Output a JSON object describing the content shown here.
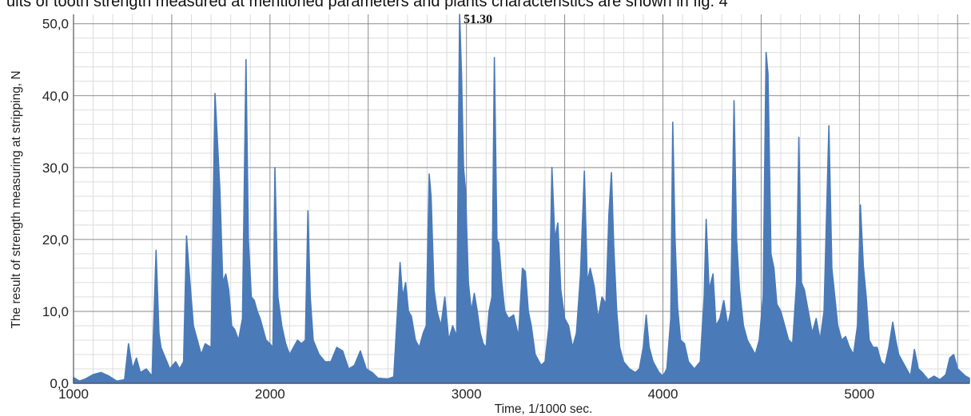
{
  "caption": "ults of tooth strength measured at mentioned parameters and plants characteristics are shown in fig. 4",
  "chart_data": {
    "type": "line",
    "xlabel": "Time,  1/1000 sec.",
    "ylabel": "The result of strength measuring at stripping, N",
    "xlim": [
      1000,
      5560
    ],
    "ylim": [
      0,
      51.3
    ],
    "x_ticks": [
      1000,
      2000,
      3000,
      4000,
      5000
    ],
    "x_tick_labels": [
      "1000",
      "2000",
      "3000",
      "4000",
      "5000"
    ],
    "y_ticks": [
      0,
      10,
      20,
      30,
      40,
      50
    ],
    "y_tick_labels": [
      "0,0",
      "10,0",
      "20,0",
      "30,0",
      "40,0",
      "50,0"
    ],
    "grid": true,
    "line_color": "#4a7ab8",
    "peak_annotation": {
      "x": 2965,
      "y": 51.3,
      "label": "51.30"
    },
    "series": [
      {
        "points": [
          [
            1000,
            0.8
          ],
          [
            1030,
            0.3
          ],
          [
            1060,
            0.6
          ],
          [
            1100,
            1.2
          ],
          [
            1140,
            1.5
          ],
          [
            1180,
            1.0
          ],
          [
            1220,
            0.3
          ],
          [
            1260,
            0.5
          ],
          [
            1280,
            5.5
          ],
          [
            1300,
            2.0
          ],
          [
            1320,
            3.5
          ],
          [
            1340,
            1.5
          ],
          [
            1370,
            2.0
          ],
          [
            1400,
            1.0
          ],
          [
            1420,
            18.5
          ],
          [
            1435,
            7.0
          ],
          [
            1445,
            5.0
          ],
          [
            1460,
            4.0
          ],
          [
            1490,
            2.0
          ],
          [
            1520,
            3.0
          ],
          [
            1540,
            2.0
          ],
          [
            1560,
            3.0
          ],
          [
            1575,
            20.5
          ],
          [
            1590,
            15.0
          ],
          [
            1610,
            8.0
          ],
          [
            1630,
            6.0
          ],
          [
            1650,
            4.0
          ],
          [
            1670,
            5.5
          ],
          [
            1700,
            5.0
          ],
          [
            1720,
            40.3
          ],
          [
            1728,
            36.0
          ],
          [
            1745,
            27.0
          ],
          [
            1760,
            14.0
          ],
          [
            1775,
            15.2
          ],
          [
            1790,
            13.0
          ],
          [
            1805,
            8.0
          ],
          [
            1820,
            7.5
          ],
          [
            1840,
            6.0
          ],
          [
            1860,
            9.0
          ],
          [
            1878,
            45.0
          ],
          [
            1890,
            20.0
          ],
          [
            1905,
            12.0
          ],
          [
            1920,
            11.5
          ],
          [
            1935,
            10.0
          ],
          [
            1950,
            9.0
          ],
          [
            1965,
            7.5
          ],
          [
            1980,
            6.0
          ],
          [
            2000,
            5.5
          ],
          [
            2015,
            5.0
          ],
          [
            2025,
            30.0
          ],
          [
            2040,
            12.0
          ],
          [
            2060,
            8.0
          ],
          [
            2080,
            5.5
          ],
          [
            2100,
            4.0
          ],
          [
            2120,
            5.0
          ],
          [
            2140,
            6.0
          ],
          [
            2160,
            5.5
          ],
          [
            2180,
            6.0
          ],
          [
            2193,
            24.0
          ],
          [
            2205,
            12.0
          ],
          [
            2220,
            6.0
          ],
          [
            2250,
            4.0
          ],
          [
            2280,
            3.0
          ],
          [
            2310,
            3.0
          ],
          [
            2340,
            5.0
          ],
          [
            2370,
            4.5
          ],
          [
            2400,
            2.0
          ],
          [
            2430,
            2.5
          ],
          [
            2460,
            4.5
          ],
          [
            2490,
            2.0
          ],
          [
            2520,
            1.5
          ],
          [
            2550,
            0.7
          ],
          [
            2600,
            0.6
          ],
          [
            2630,
            0.9
          ],
          [
            2650,
            10.5
          ],
          [
            2662,
            16.8
          ],
          [
            2675,
            12.0
          ],
          [
            2690,
            14.0
          ],
          [
            2705,
            10.0
          ],
          [
            2720,
            9.3
          ],
          [
            2740,
            6.0
          ],
          [
            2760,
            5.0
          ],
          [
            2780,
            7.0
          ],
          [
            2795,
            8.0
          ],
          [
            2810,
            29.1
          ],
          [
            2820,
            26.0
          ],
          [
            2835,
            13.0
          ],
          [
            2850,
            10.0
          ],
          [
            2870,
            8.0
          ],
          [
            2890,
            12.0
          ],
          [
            2910,
            6.0
          ],
          [
            2930,
            8.0
          ],
          [
            2950,
            6.5
          ],
          [
            2965,
            51.3
          ],
          [
            2975,
            43.0
          ],
          [
            2985,
            30.0
          ],
          [
            2995,
            27.0
          ],
          [
            3010,
            14.0
          ],
          [
            3025,
            10.0
          ],
          [
            3040,
            12.5
          ],
          [
            3055,
            10.0
          ],
          [
            3070,
            7.0
          ],
          [
            3085,
            5.5
          ],
          [
            3100,
            5.0
          ],
          [
            3115,
            10.0
          ],
          [
            3130,
            12.0
          ],
          [
            3142,
            45.3
          ],
          [
            3155,
            20.0
          ],
          [
            3165,
            19.5
          ],
          [
            3180,
            14.0
          ],
          [
            3195,
            10.0
          ],
          [
            3215,
            9.0
          ],
          [
            3240,
            9.5
          ],
          [
            3265,
            6.5
          ],
          [
            3285,
            16.0
          ],
          [
            3300,
            15.5
          ],
          [
            3315,
            10.0
          ],
          [
            3330,
            8.0
          ],
          [
            3350,
            4.0
          ],
          [
            3380,
            2.5
          ],
          [
            3400,
            3.0
          ],
          [
            3420,
            8.0
          ],
          [
            3435,
            30.0
          ],
          [
            3450,
            20.0
          ],
          [
            3465,
            22.3
          ],
          [
            3480,
            13.0
          ],
          [
            3500,
            9.0
          ],
          [
            3520,
            8.0
          ],
          [
            3540,
            5.0
          ],
          [
            3560,
            7.0
          ],
          [
            3580,
            15.0
          ],
          [
            3600,
            29.5
          ],
          [
            3615,
            14.0
          ],
          [
            3630,
            16.0
          ],
          [
            3650,
            13.5
          ],
          [
            3670,
            9.0
          ],
          [
            3690,
            12.0
          ],
          [
            3710,
            11.0
          ],
          [
            3725,
            23.5
          ],
          [
            3738,
            29.3
          ],
          [
            3750,
            19.0
          ],
          [
            3765,
            10.0
          ],
          [
            3780,
            5.0
          ],
          [
            3800,
            3.0
          ],
          [
            3830,
            2.0
          ],
          [
            3860,
            1.5
          ],
          [
            3880,
            2.0
          ],
          [
            3900,
            5.0
          ],
          [
            3915,
            9.5
          ],
          [
            3930,
            5.0
          ],
          [
            3950,
            3.0
          ],
          [
            3980,
            1.5
          ],
          [
            4000,
            1.0
          ],
          [
            4020,
            2.0
          ],
          [
            4040,
            9.0
          ],
          [
            4050,
            36.3
          ],
          [
            4062,
            20.0
          ],
          [
            4075,
            10.5
          ],
          [
            4090,
            6.0
          ],
          [
            4110,
            5.5
          ],
          [
            4130,
            3.0
          ],
          [
            4160,
            2.0
          ],
          [
            4190,
            3.0
          ],
          [
            4210,
            12.0
          ],
          [
            4220,
            22.8
          ],
          [
            4235,
            13.0
          ],
          [
            4255,
            15.2
          ],
          [
            4270,
            8.0
          ],
          [
            4290,
            9.0
          ],
          [
            4310,
            11.5
          ],
          [
            4330,
            8.0
          ],
          [
            4345,
            10.0
          ],
          [
            4362,
            39.3
          ],
          [
            4375,
            20.0
          ],
          [
            4390,
            13.0
          ],
          [
            4410,
            8.0
          ],
          [
            4430,
            6.0
          ],
          [
            4450,
            5.0
          ],
          [
            4470,
            4.0
          ],
          [
            4490,
            6.0
          ],
          [
            4510,
            12.0
          ],
          [
            4525,
            46.0
          ],
          [
            4535,
            43.0
          ],
          [
            4550,
            18.0
          ],
          [
            4565,
            16.0
          ],
          [
            4580,
            11.0
          ],
          [
            4600,
            10.0
          ],
          [
            4620,
            8.0
          ],
          [
            4640,
            6.0
          ],
          [
            4660,
            5.5
          ],
          [
            4680,
            14.0
          ],
          [
            4692,
            34.2
          ],
          [
            4705,
            14.0
          ],
          [
            4720,
            13.0
          ],
          [
            4740,
            10.0
          ],
          [
            4760,
            7.0
          ],
          [
            4780,
            9.0
          ],
          [
            4800,
            6.0
          ],
          [
            4820,
            10.0
          ],
          [
            4845,
            35.8
          ],
          [
            4860,
            16.0
          ],
          [
            4875,
            12.0
          ],
          [
            4890,
            8.0
          ],
          [
            4910,
            6.0
          ],
          [
            4930,
            6.5
          ],
          [
            4950,
            5.0
          ],
          [
            4970,
            4.0
          ],
          [
            4990,
            8.0
          ],
          [
            5005,
            24.8
          ],
          [
            5020,
            16.3
          ],
          [
            5035,
            12.0
          ],
          [
            5050,
            6.0
          ],
          [
            5070,
            5.0
          ],
          [
            5090,
            5.0
          ],
          [
            5110,
            3.0
          ],
          [
            5130,
            2.5
          ],
          [
            5150,
            5.0
          ],
          [
            5170,
            8.5
          ],
          [
            5185,
            6.0
          ],
          [
            5200,
            4.0
          ],
          [
            5220,
            3.0
          ],
          [
            5240,
            2.0
          ],
          [
            5260,
            1.0
          ],
          [
            5280,
            4.7
          ],
          [
            5300,
            2.0
          ],
          [
            5320,
            1.5
          ],
          [
            5350,
            0.5
          ],
          [
            5380,
            1.0
          ],
          [
            5410,
            0.5
          ],
          [
            5440,
            1.2
          ],
          [
            5460,
            3.5
          ],
          [
            5480,
            4.0
          ],
          [
            5500,
            2.0
          ],
          [
            5520,
            1.5
          ],
          [
            5540,
            1.0
          ],
          [
            5560,
            0.7
          ]
        ]
      }
    ]
  }
}
